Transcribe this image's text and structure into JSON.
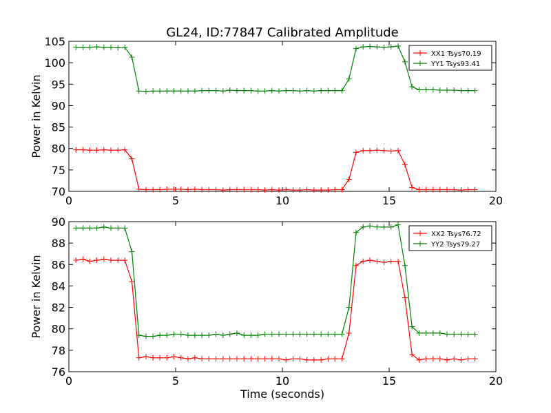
{
  "title": "GL24, ID:77847 Calibrated Amplitude",
  "colors": {
    "xx": "#ff0000",
    "yy": "#008000"
  },
  "chart_data": [
    {
      "type": "line",
      "ylabel": "Power in Kelvin",
      "xlabel": "",
      "xlim": [
        0,
        20
      ],
      "ylim": [
        70,
        105
      ],
      "xticks": [
        "0",
        "5",
        "10",
        "15",
        "20"
      ],
      "yticks": [
        "70",
        "75",
        "80",
        "85",
        "90",
        "95",
        "100",
        "105"
      ],
      "legend_position": "top-right",
      "x": [
        0.33,
        0.66,
        0.98,
        1.31,
        1.64,
        1.97,
        2.3,
        2.62,
        2.95,
        3.28,
        3.61,
        3.94,
        4.26,
        4.59,
        4.92,
        5.25,
        5.58,
        5.9,
        6.23,
        6.56,
        6.89,
        7.22,
        7.54,
        7.87,
        8.2,
        8.53,
        8.86,
        9.18,
        9.51,
        9.84,
        10.17,
        10.5,
        10.82,
        11.15,
        11.48,
        11.81,
        12.14,
        12.46,
        12.79,
        13.12,
        13.45,
        13.78,
        14.1,
        14.43,
        14.76,
        15.09,
        15.42,
        15.74,
        16.07,
        16.4,
        16.73,
        17.06,
        17.38,
        17.71,
        18.04,
        18.37,
        18.7,
        19.02
      ],
      "series": [
        {
          "name": "XX1 Tsys70.19",
          "color": "#ff0000",
          "values": [
            79.7,
            79.7,
            79.6,
            79.6,
            79.7,
            79.6,
            79.6,
            79.7,
            77.6,
            70.5,
            70.4,
            70.4,
            70.4,
            70.5,
            70.5,
            70.5,
            70.4,
            70.5,
            70.4,
            70.4,
            70.4,
            70.3,
            70.4,
            70.4,
            70.4,
            70.4,
            70.4,
            70.3,
            70.4,
            70.3,
            70.4,
            70.3,
            70.3,
            70.4,
            70.3,
            70.3,
            70.3,
            70.4,
            70.4,
            72.8,
            79.1,
            79.5,
            79.5,
            79.6,
            79.5,
            79.4,
            79.5,
            76.2,
            70.9,
            70.4,
            70.4,
            70.4,
            70.4,
            70.4,
            70.4,
            70.3,
            70.4,
            70.4
          ]
        },
        {
          "name": "YY1 Tsys93.41",
          "color": "#008000",
          "values": [
            103.6,
            103.6,
            103.6,
            103.7,
            103.6,
            103.6,
            103.5,
            103.6,
            101.3,
            93.4,
            93.3,
            93.4,
            93.4,
            93.4,
            93.4,
            93.4,
            93.4,
            93.4,
            93.5,
            93.5,
            93.5,
            93.4,
            93.6,
            93.5,
            93.5,
            93.5,
            93.4,
            93.4,
            93.5,
            93.4,
            93.5,
            93.5,
            93.4,
            93.5,
            93.4,
            93.5,
            93.5,
            93.5,
            93.5,
            96.2,
            103.3,
            103.7,
            103.8,
            103.7,
            103.6,
            103.7,
            103.9,
            100.2,
            94.4,
            93.7,
            93.7,
            93.7,
            93.6,
            93.6,
            93.6,
            93.5,
            93.5,
            93.5
          ]
        }
      ]
    },
    {
      "type": "line",
      "ylabel": "Power in Kelvin",
      "xlabel": "Time (seconds)",
      "xlim": [
        0,
        20
      ],
      "ylim": [
        76,
        90
      ],
      "xticks": [
        "0",
        "5",
        "10",
        "15",
        "20"
      ],
      "yticks": [
        "76",
        "78",
        "80",
        "82",
        "84",
        "86",
        "88",
        "90"
      ],
      "legend_position": "top-right",
      "x": [
        0.33,
        0.66,
        0.98,
        1.31,
        1.64,
        1.97,
        2.3,
        2.62,
        2.95,
        3.28,
        3.61,
        3.94,
        4.26,
        4.59,
        4.92,
        5.25,
        5.58,
        5.9,
        6.23,
        6.56,
        6.89,
        7.22,
        7.54,
        7.87,
        8.2,
        8.53,
        8.86,
        9.18,
        9.51,
        9.84,
        10.17,
        10.5,
        10.82,
        11.15,
        11.48,
        11.81,
        12.14,
        12.46,
        12.79,
        13.12,
        13.45,
        13.78,
        14.1,
        14.43,
        14.76,
        15.09,
        15.42,
        15.74,
        16.07,
        16.4,
        16.73,
        17.06,
        17.38,
        17.71,
        18.04,
        18.37,
        18.7,
        19.02
      ],
      "series": [
        {
          "name": "XX2 Tsys76.72",
          "color": "#ff0000",
          "values": [
            86.4,
            86.5,
            86.3,
            86.4,
            86.5,
            86.4,
            86.4,
            86.4,
            84.4,
            77.3,
            77.4,
            77.3,
            77.3,
            77.3,
            77.4,
            77.3,
            77.2,
            77.3,
            77.2,
            77.2,
            77.2,
            77.2,
            77.2,
            77.2,
            77.2,
            77.2,
            77.2,
            77.2,
            77.2,
            77.2,
            77.1,
            77.2,
            77.2,
            77.1,
            77.1,
            77.1,
            77.2,
            77.2,
            77.2,
            79.6,
            85.9,
            86.3,
            86.4,
            86.3,
            86.2,
            86.3,
            86.3,
            82.9,
            77.6,
            77.1,
            77.2,
            77.2,
            77.2,
            77.1,
            77.2,
            77.1,
            77.2,
            77.2
          ]
        },
        {
          "name": "YY2 Tsys79.27",
          "color": "#008000",
          "values": [
            89.4,
            89.4,
            89.4,
            89.4,
            89.5,
            89.4,
            89.4,
            89.4,
            87.2,
            79.4,
            79.3,
            79.3,
            79.4,
            79.4,
            79.5,
            79.5,
            79.4,
            79.4,
            79.4,
            79.4,
            79.5,
            79.4,
            79.5,
            79.6,
            79.4,
            79.4,
            79.4,
            79.5,
            79.5,
            79.5,
            79.5,
            79.5,
            79.5,
            79.5,
            79.5,
            79.5,
            79.5,
            79.5,
            79.5,
            82.0,
            89.0,
            89.5,
            89.6,
            89.5,
            89.5,
            89.5,
            89.7,
            85.9,
            80.2,
            79.6,
            79.6,
            79.6,
            79.6,
            79.5,
            79.5,
            79.5,
            79.5,
            79.5
          ]
        }
      ]
    }
  ]
}
